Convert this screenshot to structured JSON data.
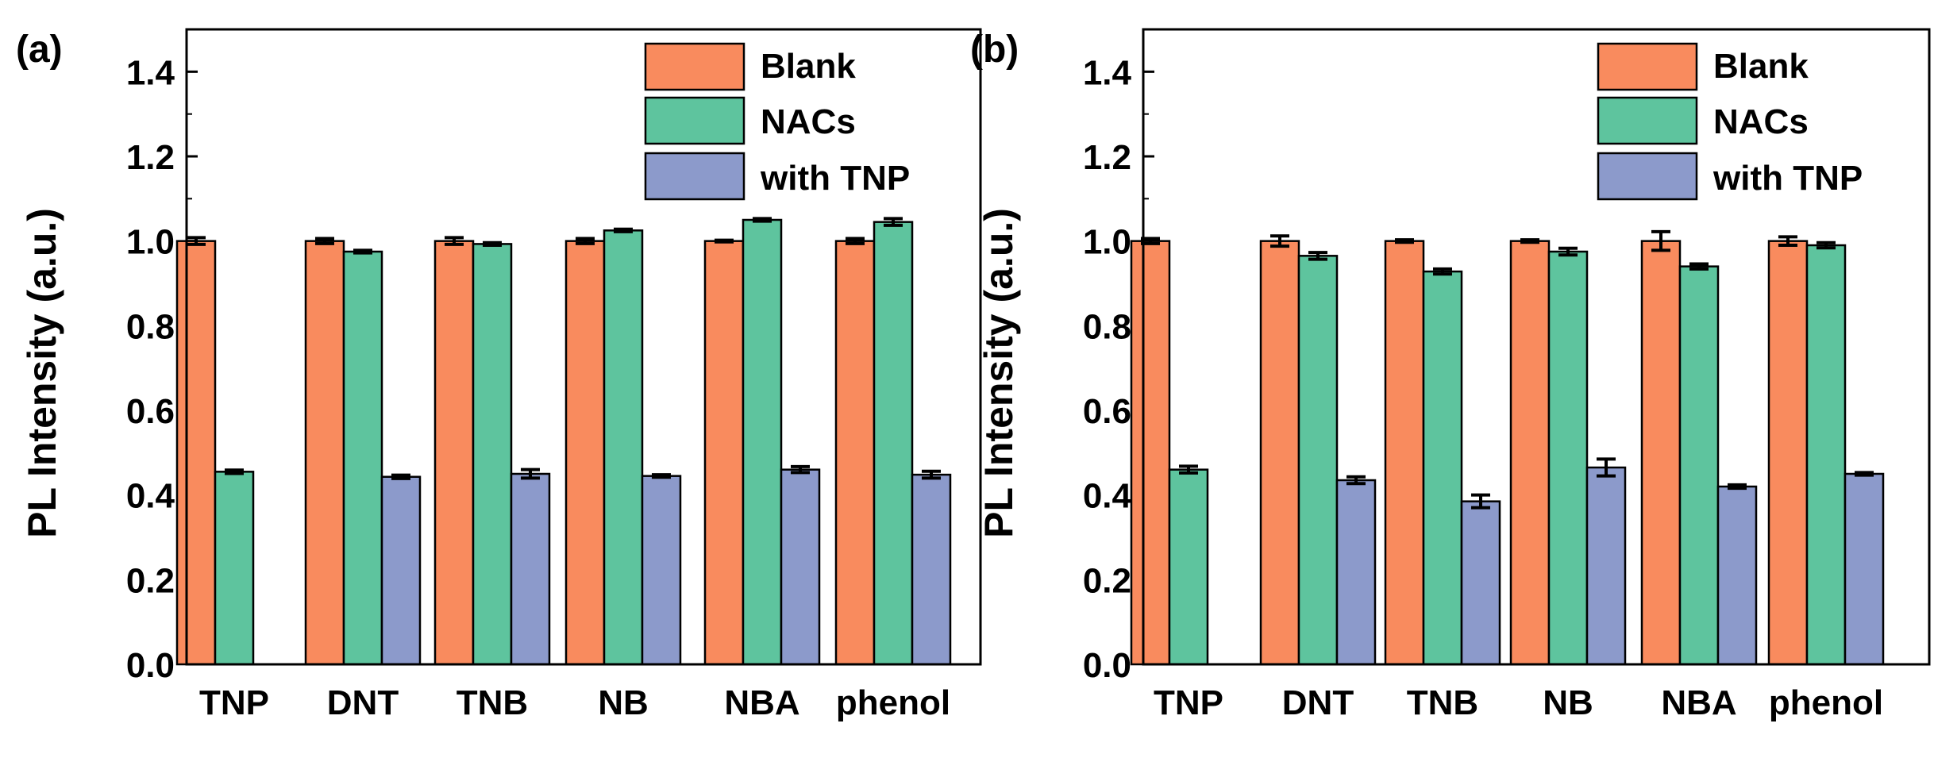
{
  "colors": {
    "blank": "#F98B5E",
    "nacs": "#5EC49E",
    "with_tnp": "#8C9ACB",
    "axis": "#000000"
  },
  "chart_data": [
    {
      "type": "bar",
      "panel_label": "(a)",
      "ylabel": "PL Intensity (a.u.)",
      "xlabel": "",
      "ylim": [
        0.0,
        1.5
      ],
      "yticks": [
        "0.0",
        "0.2",
        "0.4",
        "0.6",
        "0.8",
        "1.0",
        "1.2",
        "1.4"
      ],
      "categories": [
        "TNP",
        "DNT",
        "TNB",
        "NB",
        "NBA",
        "phenol"
      ],
      "legend_position": "top-right",
      "series": [
        {
          "name": "Blank",
          "color_key": "blank",
          "values": [
            1.0,
            1.0,
            1.0,
            1.0,
            1.0,
            1.0
          ],
          "errors": [
            0.008,
            0.006,
            0.008,
            0.006,
            0.002,
            0.006
          ]
        },
        {
          "name": "NACs",
          "color_key": "nacs",
          "values": [
            0.455,
            0.975,
            0.993,
            1.025,
            1.05,
            1.045
          ],
          "errors": [
            0.004,
            0.003,
            0.003,
            0.003,
            0.003,
            0.008
          ]
        },
        {
          "name": "with TNP",
          "color_key": "with_tnp",
          "values": [
            null,
            0.443,
            0.45,
            0.445,
            0.46,
            0.448
          ],
          "errors": [
            null,
            0.004,
            0.01,
            0.003,
            0.007,
            0.008
          ]
        }
      ]
    },
    {
      "type": "bar",
      "panel_label": "(b)",
      "ylabel": "PL Intensity (a.u.)",
      "xlabel": "",
      "ylim": [
        0.0,
        1.5
      ],
      "yticks": [
        "0.0",
        "0.2",
        "0.4",
        "0.6",
        "0.8",
        "1.0",
        "1.2",
        "1.4"
      ],
      "categories": [
        "TNP",
        "DNT",
        "TNB",
        "NB",
        "NBA",
        "phenol"
      ],
      "legend_position": "top-right",
      "series": [
        {
          "name": "Blank",
          "color_key": "blank",
          "values": [
            1.0,
            1.0,
            1.0,
            1.0,
            1.0,
            1.0
          ],
          "errors": [
            0.006,
            0.012,
            0.003,
            0.003,
            0.022,
            0.01
          ]
        },
        {
          "name": "NACs",
          "color_key": "nacs",
          "values": [
            0.46,
            0.965,
            0.928,
            0.975,
            0.94,
            0.99
          ],
          "errors": [
            0.008,
            0.008,
            0.006,
            0.008,
            0.006,
            0.006
          ]
        },
        {
          "name": "with TNP",
          "color_key": "with_tnp",
          "values": [
            null,
            0.435,
            0.385,
            0.465,
            0.42,
            0.45
          ],
          "errors": [
            null,
            0.008,
            0.015,
            0.02,
            0.004,
            0.003
          ]
        }
      ]
    }
  ]
}
